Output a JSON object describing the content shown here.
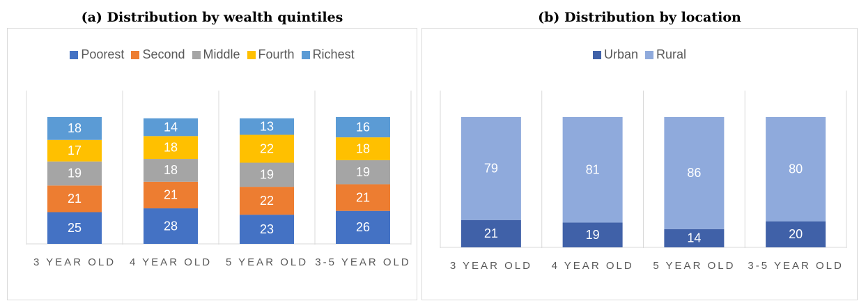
{
  "chart_data": [
    {
      "type": "stacked_bar",
      "title": "(a)  Distribution by wealth quintiles",
      "categories": [
        "3 YEAR OLD",
        "4 YEAR OLD",
        "5 YEAR OLD",
        "3-5 YEAR OLD"
      ],
      "series": [
        {
          "name": "Poorest",
          "color": "#4472c4",
          "values": [
            25,
            28,
            23,
            26
          ]
        },
        {
          "name": "Second",
          "color": "#ed7d31",
          "values": [
            21,
            21,
            22,
            21
          ]
        },
        {
          "name": "Middle",
          "color": "#a5a5a5",
          "values": [
            19,
            18,
            19,
            19
          ]
        },
        {
          "name": "Fourth",
          "color": "#ffc000",
          "values": [
            17,
            18,
            22,
            18
          ]
        },
        {
          "name": "Richest",
          "color": "#5b9bd5",
          "values": [
            18,
            14,
            13,
            16
          ]
        }
      ]
    },
    {
      "type": "stacked_bar",
      "title": "(b)  Distribution by location",
      "categories": [
        "3 YEAR OLD",
        "4 YEAR OLD",
        "5 YEAR OLD",
        "3-5 YEAR OLD"
      ],
      "series": [
        {
          "name": "Urban",
          "color": "#4061a8",
          "values": [
            21,
            19,
            14,
            20
          ]
        },
        {
          "name": "Rural",
          "color": "#8faadc",
          "values": [
            79,
            81,
            86,
            80
          ]
        }
      ]
    }
  ]
}
